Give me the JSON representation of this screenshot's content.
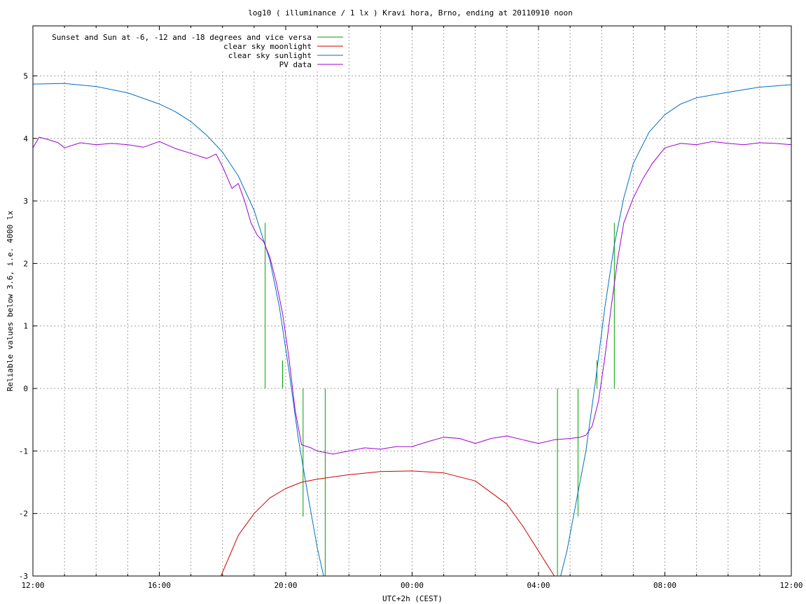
{
  "chart_data": {
    "type": "line",
    "title": "log10 ( illuminance / 1 lx ) Kravi hora, Brno, ending at 20110910 noon",
    "xlabel": "UTC+2h (CEST)",
    "ylabel": "Reliable values below 3.6, i.e. 4000 lx",
    "xlim": [
      12,
      36
    ],
    "ylim": [
      -3,
      5.8
    ],
    "x_unit": "hours since 12:00 (UTC+2h)",
    "x_ticks": [
      {
        "value": 12,
        "label": "12:00"
      },
      {
        "value": 16,
        "label": "16:00"
      },
      {
        "value": 20,
        "label": "20:00"
      },
      {
        "value": 24,
        "label": "00:00"
      },
      {
        "value": 28,
        "label": "04:00"
      },
      {
        "value": 32,
        "label": "08:00"
      },
      {
        "value": 36,
        "label": "12:00"
      }
    ],
    "y_ticks": [
      {
        "value": -3,
        "label": "-3"
      },
      {
        "value": -2,
        "label": "-2"
      },
      {
        "value": -1,
        "label": "-1"
      },
      {
        "value": 0,
        "label": "0"
      },
      {
        "value": 1,
        "label": "1"
      },
      {
        "value": 2,
        "label": "2"
      },
      {
        "value": 3,
        "label": "3"
      },
      {
        "value": 4,
        "label": "4"
      },
      {
        "value": 5,
        "label": "5"
      }
    ],
    "grid": true,
    "legend_position": "top-left",
    "series": [
      {
        "name": "Sunset and Sun at -6, -12 and -18 degrees and vice versa",
        "color": "#00a000",
        "style": "impulses",
        "x": [
          19.35,
          19.9,
          20.55,
          21.25,
          28.6,
          29.25,
          29.85,
          30.4
        ],
        "y": [
          2.65,
          0.45,
          -2.05,
          -3.0,
          -3.0,
          -2.05,
          0.45,
          2.65
        ]
      },
      {
        "name": "clear sky moonlight",
        "color": "#d00000",
        "x": [
          17.95,
          18.5,
          19.0,
          19.5,
          20.0,
          20.5,
          21.0,
          22.0,
          23.0,
          24.0,
          25.0,
          26.0,
          27.0,
          27.5,
          28.0,
          28.5
        ],
        "y": [
          -3.0,
          -2.35,
          -2.0,
          -1.75,
          -1.6,
          -1.5,
          -1.45,
          -1.38,
          -1.33,
          -1.32,
          -1.35,
          -1.48,
          -1.85,
          -2.2,
          -2.6,
          -3.0
        ]
      },
      {
        "name": "clear sky sunlight",
        "color": "#0070c0",
        "x": [
          12.0,
          13.0,
          14.0,
          15.0,
          16.0,
          16.5,
          17.0,
          17.5,
          18.0,
          18.5,
          19.0,
          19.5,
          19.8,
          20.1,
          20.4,
          20.7,
          21.0,
          21.2,
          28.7,
          28.9,
          29.2,
          29.5,
          29.8,
          30.1,
          30.4,
          30.7,
          31.0,
          31.5,
          32.0,
          32.5,
          33.0,
          34.0,
          35.0,
          36.0
        ],
        "y": [
          4.87,
          4.88,
          4.83,
          4.73,
          4.55,
          4.43,
          4.27,
          4.05,
          3.78,
          3.4,
          2.85,
          2.05,
          1.3,
          0.3,
          -0.8,
          -1.7,
          -2.55,
          -3.0,
          -3.0,
          -2.6,
          -1.8,
          -1.0,
          0.1,
          1.3,
          2.3,
          3.05,
          3.6,
          4.1,
          4.38,
          4.55,
          4.65,
          4.74,
          4.82,
          4.86
        ]
      },
      {
        "name": "PV data",
        "color": "#a000d0",
        "x": [
          12.0,
          12.2,
          12.5,
          12.8,
          13.0,
          13.5,
          14.0,
          14.5,
          15.0,
          15.5,
          16.0,
          16.5,
          17.0,
          17.5,
          17.8,
          18.0,
          18.3,
          18.5,
          18.7,
          18.9,
          19.1,
          19.3,
          19.5,
          19.7,
          19.9,
          20.1,
          20.3,
          20.5,
          20.8,
          21.0,
          21.5,
          22.0,
          22.5,
          23.0,
          23.5,
          24.0,
          24.5,
          25.0,
          25.5,
          26.0,
          26.5,
          27.0,
          27.5,
          28.0,
          28.5,
          29.0,
          29.3,
          29.5,
          29.7,
          29.9,
          30.1,
          30.3,
          30.5,
          30.7,
          31.0,
          31.3,
          31.6,
          32.0,
          32.5,
          33.0,
          33.5,
          34.0,
          34.5,
          35.0,
          35.5,
          36.0
        ],
        "y": [
          3.85,
          4.02,
          3.98,
          3.93,
          3.85,
          3.93,
          3.9,
          3.92,
          3.9,
          3.86,
          3.95,
          3.84,
          3.76,
          3.68,
          3.75,
          3.55,
          3.2,
          3.28,
          3.0,
          2.65,
          2.45,
          2.35,
          2.1,
          1.7,
          1.2,
          0.5,
          -0.35,
          -0.9,
          -0.95,
          -1.0,
          -1.05,
          -1.0,
          -0.95,
          -0.97,
          -0.93,
          -0.93,
          -0.85,
          -0.78,
          -0.8,
          -0.88,
          -0.8,
          -0.76,
          -0.82,
          -0.88,
          -0.82,
          -0.8,
          -0.78,
          -0.75,
          -0.6,
          -0.2,
          0.5,
          1.3,
          2.05,
          2.65,
          3.05,
          3.35,
          3.6,
          3.85,
          3.92,
          3.9,
          3.95,
          3.92,
          3.9,
          3.93,
          3.92,
          3.9
        ]
      }
    ]
  }
}
